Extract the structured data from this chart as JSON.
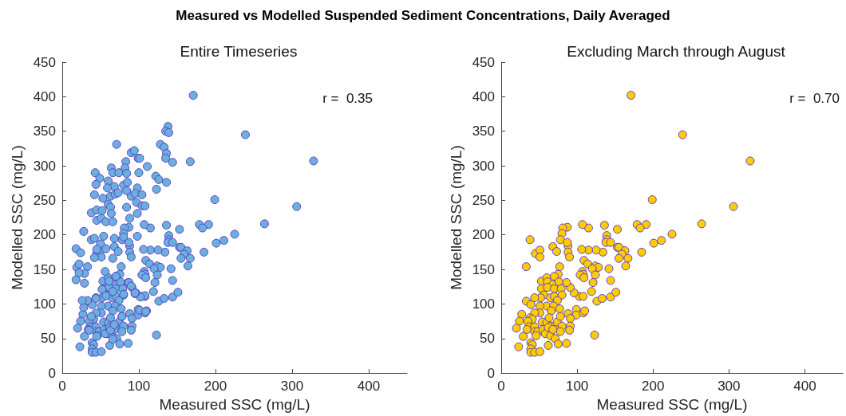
{
  "chart_data": [
    {
      "type": "scatter",
      "title": "Measured vs Modelled Suspended Sediment Concentrations, Daily Averaged",
      "subtitle": "Entire Timeseries",
      "xlabel": "Measured SSC (mg/L)",
      "ylabel": "Modelled SSC (mg/L)",
      "xlim": [
        0,
        450
      ],
      "ylim": [
        0,
        450
      ],
      "xticks": [
        0,
        100,
        200,
        300,
        400
      ],
      "yticks": [
        0,
        50,
        100,
        150,
        200,
        250,
        300,
        350,
        400,
        450
      ],
      "grid": false,
      "marker": "circle",
      "annotations": [
        "r =  0.35"
      ],
      "series": [
        {
          "color": "#6ab0de",
          "x": [
            171,
            239,
            328,
            306,
            264,
            199,
            225,
            201,
            211,
            185,
            179,
            191,
            183,
            153,
            136,
            139,
            139,
            138,
            144,
            153,
            155,
            163,
            159,
            155,
            167,
            164,
            134,
            125,
            115,
            106,
            115,
            107,
            109,
            114,
            124,
            128,
            120,
            142,
            107,
            108,
            104,
            109,
            124,
            144,
            121,
            119,
            126,
            133,
            144,
            151,
            103,
            108,
            96,
            91,
            86,
            99,
            99,
            108,
            110,
            123,
            87,
            81,
            80,
            78,
            88,
            87,
            88,
            90,
            68,
            73,
            38,
            45,
            51,
            51,
            33,
            77,
            75,
            53,
            60,
            70,
            61,
            68,
            76,
            53,
            61,
            70,
            79,
            56,
            52,
            65,
            70,
            80,
            74,
            60,
            69,
            77,
            33,
            39,
            44,
            51,
            51,
            44,
            66,
            27,
            24,
            20,
            29,
            23,
            41,
            35,
            36,
            34,
            44,
            44,
            48,
            46,
            39,
            41,
            39,
            39,
            44,
            51,
            54,
            60,
            63,
            70,
            74,
            78,
            80,
            78,
            55,
            58,
            65,
            71,
            62,
            75,
            86,
            88,
            91,
            91,
            90,
            62,
            68,
            138,
            135,
            139,
            71,
            128,
            133,
            136,
            135,
            144,
            167,
            90,
            94,
            83,
            99,
            101,
            111,
            82,
            100,
            64,
            66,
            74,
            43,
            49,
            44,
            60,
            68,
            80,
            85,
            84,
            98,
            122,
            126,
            136,
            123,
            42,
            53,
            63,
            69,
            73,
            90,
            95,
            104,
            84,
            59,
            38,
            45,
            52,
            60,
            63,
            64,
            84,
            97,
            104,
            108,
            98,
            45,
            51,
            57,
            66,
            88,
            28,
            18,
            19,
            22,
            29,
            22,
            29,
            18,
            24,
            28,
            33,
            26,
            38,
            35,
            45,
            56,
            66,
            63,
            68,
            78,
            101,
            109,
            108,
            102,
            95,
            98,
            42,
            50,
            57,
            45,
            42,
            66,
            54,
            68,
            80,
            56,
            61,
            70,
            52,
            66,
            80,
            44,
            57,
            87,
            90,
            95
          ],
          "values": [
            402,
            345,
            307,
            241,
            216,
            251,
            201,
            188,
            192,
            175,
            215,
            215,
            210,
            208,
            214,
            199,
            193,
            189,
            189,
            182,
            182,
            177,
            172,
            166,
            166,
            155,
            175,
            178,
            178,
            179,
            210,
            215,
            163,
            158,
            155,
            153,
            151,
            151,
            147,
            143,
            142,
            138,
            142,
            134,
            131,
            118,
            104,
            108,
            110,
            117,
            111,
            111,
            116,
            124,
            131,
            92,
            84,
            87,
            90,
            55,
            211,
            210,
            202,
            193,
            184,
            189,
            175,
            168,
            183,
            176,
            193,
            173,
            178,
            168,
            154,
            154,
            143,
            133,
            138,
            140,
            132,
            128,
            132,
            122,
            124,
            122,
            122,
            113,
            109,
            109,
            111,
            113,
            105,
            97,
            97,
            93,
            104,
            99,
            109,
            97,
            87,
            87,
            90,
            85,
            75,
            65,
            53,
            38,
            78,
            75,
            67,
            63,
            67,
            60,
            60,
            54,
            44,
            41,
            35,
            30,
            30,
            31,
            74,
            73,
            80,
            67,
            74,
            82,
            68,
            60,
            63,
            57,
            54,
            50,
            40,
            42,
            43,
            86,
            79,
            68,
            62,
            66,
            63,
            357,
            350,
            348,
            331,
            331,
            327,
            318,
            311,
            305,
            306,
            319,
            322,
            306,
            311,
            311,
            299,
            297,
            290,
            297,
            290,
            290,
            290,
            282,
            273,
            278,
            270,
            272,
            276,
            289,
            268,
            285,
            280,
            276,
            266,
            258,
            253,
            256,
            259,
            261,
            256,
            260,
            258,
            264,
            268,
            232,
            236,
            235,
            244,
            240,
            231,
            240,
            247,
            242,
            242,
            231,
            221,
            224,
            219,
            219,
            224,
            205,
            135,
            153,
            158,
            144,
            145,
            130,
            180,
            174,
            95,
            105,
            105,
            82,
            62,
            53,
            57,
            49,
            62,
            70,
            82,
            91,
            89,
            112,
            110,
            115,
            198,
            195,
            187,
            180,
            179,
            167,
            166,
            198,
            195,
            197,
            147,
            133,
            140,
            121,
            118,
            114,
            108,
            112,
            131,
            126,
            116
          ]
        }
      ]
    },
    {
      "type": "scatter",
      "subtitle": "Excluding March through August",
      "xlabel": "Measured SSC (mg/L)",
      "ylabel": "Modelled SSC (mg/L)",
      "xlim": [
        0,
        450
      ],
      "ylim": [
        0,
        450
      ],
      "xticks": [
        0,
        100,
        200,
        300,
        400
      ],
      "yticks": [
        0,
        50,
        100,
        150,
        200,
        250,
        300,
        350,
        400,
        450
      ],
      "grid": false,
      "marker": "circle",
      "annotations": [
        "r =  0.70"
      ],
      "series": [
        {
          "color": "#ffcc00",
          "x": [
            171,
            239,
            328,
            306,
            264,
            199,
            225,
            201,
            211,
            185,
            179,
            191,
            183,
            153,
            136,
            139,
            139,
            138,
            144,
            153,
            155,
            163,
            159,
            155,
            167,
            164,
            134,
            125,
            115,
            106,
            115,
            107,
            109,
            114,
            124,
            128,
            120,
            142,
            107,
            108,
            104,
            109,
            124,
            144,
            121,
            119,
            126,
            133,
            144,
            151,
            103,
            108,
            96,
            91,
            86,
            99,
            99,
            108,
            110,
            123,
            87,
            81,
            80,
            78,
            88,
            87,
            88,
            90,
            68,
            73,
            38,
            45,
            51,
            51,
            33,
            77,
            75,
            53,
            60,
            70,
            61,
            68,
            76,
            53,
            61,
            70,
            79,
            56,
            52,
            65,
            70,
            80,
            74,
            60,
            69,
            77,
            33,
            39,
            44,
            51,
            51,
            44,
            66,
            27,
            24,
            20,
            29,
            23,
            38,
            41,
            35,
            36,
            34,
            44,
            44,
            48,
            46,
            39,
            41,
            39,
            39,
            44,
            51,
            54,
            60,
            63,
            65,
            70,
            74,
            78,
            80,
            78,
            55,
            58,
            65,
            71,
            62,
            75,
            86,
            88,
            91,
            91,
            90,
            62,
            68
          ],
          "values": [
            402,
            345,
            307,
            241,
            216,
            251,
            201,
            188,
            192,
            175,
            215,
            215,
            210,
            208,
            214,
            199,
            193,
            189,
            189,
            182,
            182,
            177,
            172,
            166,
            166,
            155,
            175,
            178,
            178,
            179,
            210,
            215,
            163,
            158,
            155,
            153,
            151,
            151,
            147,
            143,
            142,
            138,
            142,
            134,
            131,
            118,
            104,
            108,
            110,
            117,
            111,
            111,
            116,
            124,
            131,
            92,
            84,
            87,
            90,
            55,
            211,
            210,
            202,
            193,
            184,
            189,
            175,
            168,
            183,
            176,
            193,
            173,
            178,
            168,
            154,
            154,
            143,
            133,
            138,
            140,
            132,
            128,
            132,
            122,
            124,
            122,
            122,
            113,
            109,
            109,
            111,
            113,
            105,
            97,
            97,
            93,
            104,
            99,
            109,
            97,
            87,
            87,
            90,
            85,
            75,
            65,
            53,
            38,
            80,
            78,
            75,
            67,
            63,
            67,
            60,
            60,
            54,
            44,
            41,
            35,
            30,
            30,
            31,
            74,
            73,
            80,
            68,
            67,
            74,
            82,
            68,
            60,
            63,
            57,
            54,
            50,
            40,
            42,
            43,
            86,
            79,
            68,
            62,
            66,
            63
          ]
        }
      ]
    }
  ]
}
